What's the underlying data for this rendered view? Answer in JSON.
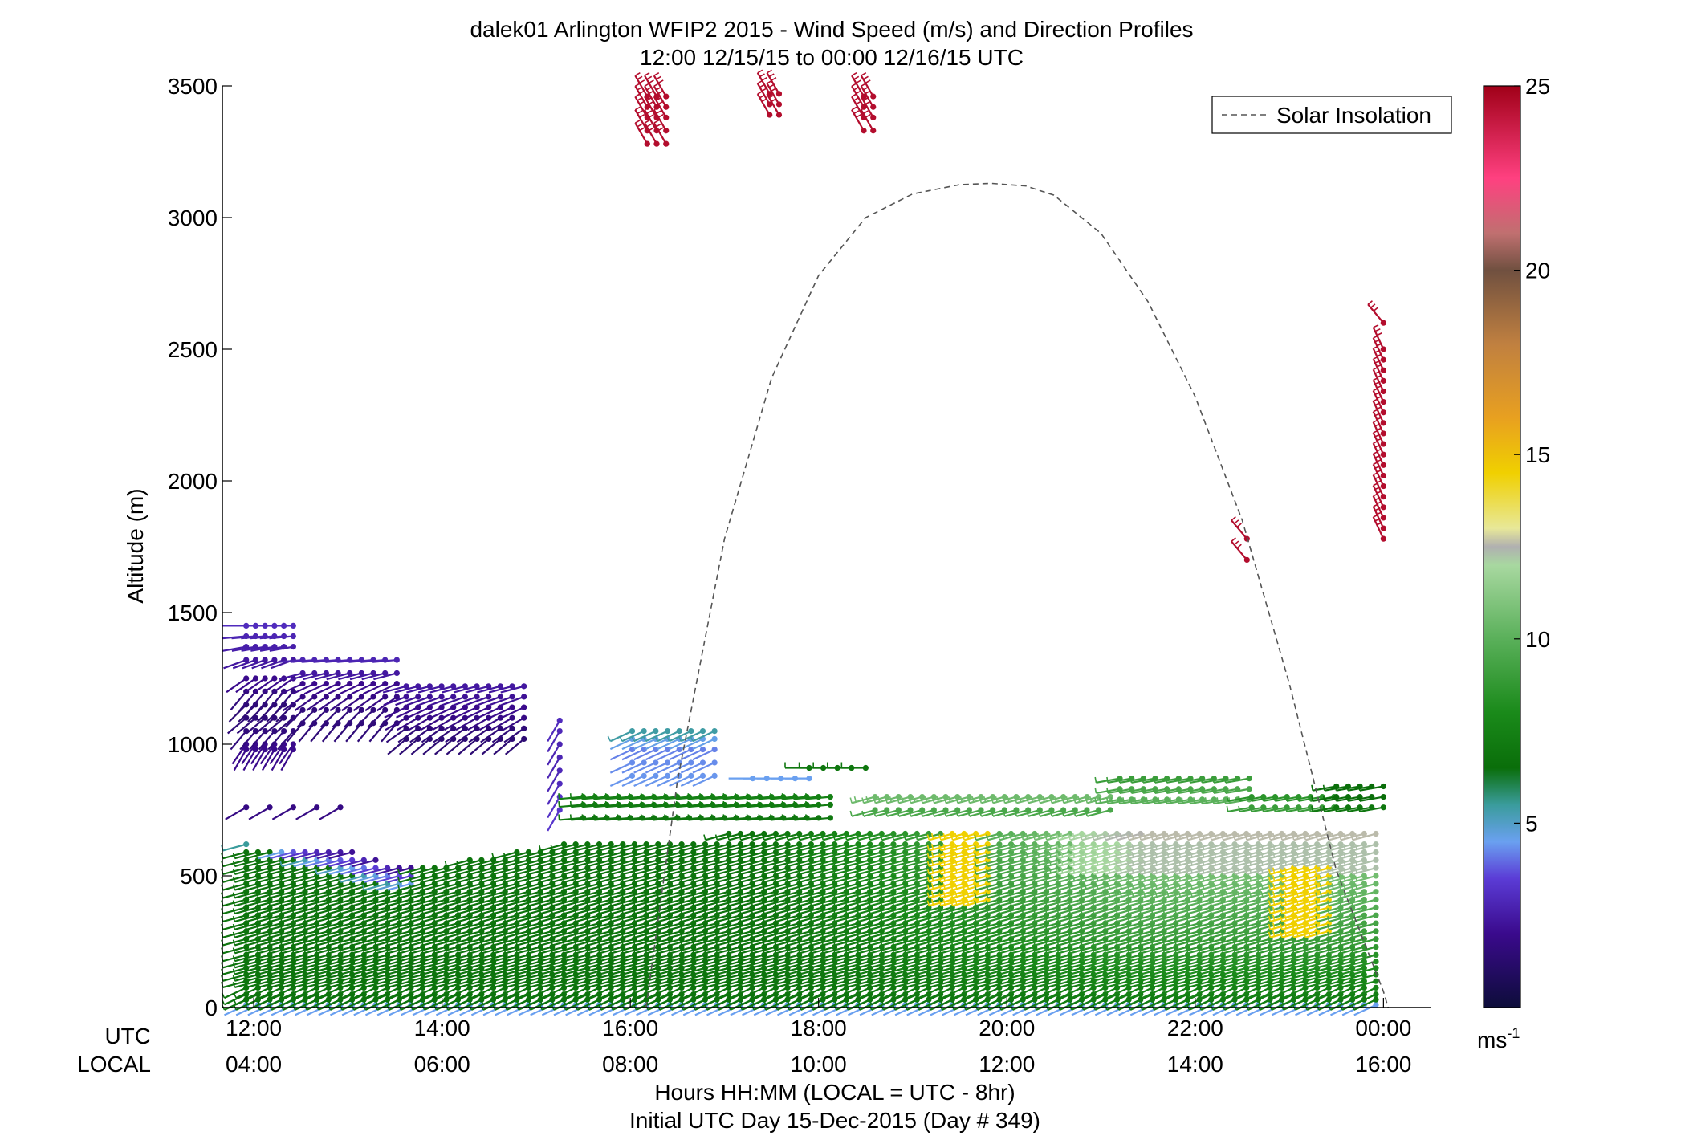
{
  "chart_data": {
    "type": "scatter",
    "title": "dalek01 Arlington WFIP2 2015 - Wind Speed (m/s) and Direction Profiles",
    "subtitle": "12:00 12/15/15 to 00:00 12/16/15  UTC",
    "ylabel": "Altitude (m)",
    "xlabel": "Hours HH:MM  (LOCAL = UTC - 8hr)",
    "footer": "Initial UTC Day 15-Dec-2015 (Day # 349)",
    "x_row_labels": [
      "UTC",
      "LOCAL"
    ],
    "xlim_hours_utc": [
      11.6667,
      24.5
    ],
    "ylim": [
      0,
      3500
    ],
    "grid": false,
    "legend_position": "top-right",
    "x_ticks": {
      "values": [
        12,
        14,
        16,
        18,
        20,
        22,
        24
      ],
      "utc_labels": [
        "12:00",
        "14:00",
        "16:00",
        "18:00",
        "20:00",
        "22:00",
        "00:00"
      ],
      "local_labels": [
        "04:00",
        "06:00",
        "08:00",
        "10:00",
        "12:00",
        "14:00",
        "16:00"
      ]
    },
    "y_ticks": {
      "values": [
        0,
        500,
        1000,
        1500,
        2000,
        2500,
        3000,
        3500
      ],
      "labels": [
        "0",
        "500",
        "1000",
        "1500",
        "2000",
        "2500",
        "3000",
        "3500"
      ]
    },
    "colorbar": {
      "min": 0,
      "max": 25,
      "tick_values": [
        5,
        10,
        15,
        20,
        25
      ],
      "tick_labels": [
        "5",
        "10",
        "15",
        "20",
        "25"
      ],
      "unit_label": "ms",
      "unit_exponent": "-1",
      "stops": [
        [
          0,
          "#0d0d3a"
        ],
        [
          2,
          "#3a0a8c"
        ],
        [
          3.5,
          "#5b3cd6"
        ],
        [
          4.5,
          "#6aa0f0"
        ],
        [
          5.5,
          "#3a9c9c"
        ],
        [
          6.5,
          "#0a6e0a"
        ],
        [
          8,
          "#1a8a1a"
        ],
        [
          10,
          "#5ab05a"
        ],
        [
          12,
          "#a8d8a0"
        ],
        [
          12.5,
          "#b0b0b0"
        ],
        [
          13,
          "#e8e898"
        ],
        [
          14.5,
          "#f0d000"
        ],
        [
          16,
          "#e8a020"
        ],
        [
          18,
          "#c08040"
        ],
        [
          20,
          "#705040"
        ],
        [
          21,
          "#c07070"
        ],
        [
          22.5,
          "#ff4080"
        ],
        [
          25,
          "#a00018"
        ]
      ]
    },
    "series": [
      {
        "name": "Solar Insolation",
        "style": "dashed",
        "color": "#555555",
        "x": [
          16.167,
          16.5,
          17,
          17.5,
          18,
          18.5,
          19,
          19.5,
          19.833,
          20.2,
          20.5,
          21,
          21.5,
          22,
          22.5,
          23,
          23.5,
          24,
          24.05
        ],
        "y": [
          0,
          860,
          1780,
          2390,
          2780,
          3000,
          3090,
          3125,
          3130,
          3120,
          3085,
          2940,
          2680,
          2320,
          1850,
          1230,
          520,
          60,
          0
        ]
      }
    ],
    "wind_barbs": {
      "units": "m/s",
      "direction_convention": "degrees from which wind blows",
      "groups": [
        {
          "t0": 11.92,
          "t1": 12.42,
          "dt": 0.1,
          "z": [
            980,
            1000,
            1050,
            1100,
            1150,
            1200,
            1250,
            1320,
            1370,
            1410,
            1450
          ],
          "spd": [
            2.0,
            2.0,
            1.6,
            1.5,
            1.4,
            1.6,
            2.0,
            2.4,
            2.6,
            2.8,
            3.0
          ],
          "dir": [
            210,
            215,
            220,
            230,
            225,
            220,
            235,
            250,
            260,
            265,
            270
          ]
        },
        {
          "t0": 12.52,
          "t1": 13.52,
          "dt": 0.125,
          "z": [
            1080,
            1130,
            1180,
            1230,
            1270,
            1320
          ],
          "spd": [
            1.5,
            1.6,
            1.8,
            2.0,
            2.4,
            2.8
          ],
          "dir": [
            220,
            225,
            235,
            245,
            255,
            265
          ]
        },
        {
          "t0": 13.62,
          "t1": 14.87,
          "dt": 0.125,
          "z": [
            1020,
            1060,
            1100,
            1140,
            1180,
            1220
          ],
          "spd": [
            1.4,
            1.5,
            1.8,
            2.0,
            2.2,
            2.4
          ],
          "dir": [
            230,
            235,
            240,
            245,
            250,
            255
          ]
        },
        {
          "t0": 15.25,
          "t1": 15.25,
          "dt": 0.125,
          "z": [
            750,
            800,
            850,
            900,
            950,
            1000,
            1050,
            1090
          ],
          "spd": [
            3.3,
            3.2,
            3.0,
            2.9,
            2.8,
            2.8,
            2.9,
            3.0
          ],
          "dir": [
            210,
            210,
            210,
            210,
            210,
            210,
            210,
            210
          ]
        },
        {
          "t0": 16.02,
          "t1": 16.9,
          "dt": 0.125,
          "z": [
            880,
            930,
            980,
            1020,
            1050
          ],
          "spd": [
            4.4,
            4.3,
            4.2,
            4.6,
            5.4
          ],
          "dir": [
            245,
            245,
            245,
            245,
            245
          ]
        },
        {
          "t0": 11.92,
          "t1": 12.92,
          "dt": 0.25,
          "z": [
            760
          ],
          "spd": [
            1.8
          ],
          "dir": [
            240
          ]
        },
        {
          "t0": 17.3,
          "t1": 17.9,
          "dt": 0.15,
          "z": [
            870
          ],
          "spd": [
            4.5
          ],
          "dir": [
            270
          ]
        },
        {
          "t0": 17.9,
          "t1": 18.6,
          "dt": 0.15,
          "z": [
            910
          ],
          "spd": [
            7.0
          ],
          "dir": [
            270
          ]
        },
        {
          "t0": 15.5,
          "t1": 18.2,
          "dt": 0.125,
          "z": [
            720,
            770,
            800
          ],
          "spd": [
            7.0,
            7.2,
            7.5
          ],
          "dir": [
            265,
            265,
            265
          ]
        },
        {
          "t0": 18.6,
          "t1": 21.2,
          "dt": 0.125,
          "z": [
            750,
            800
          ],
          "spd": [
            9.5,
            10.5
          ],
          "dir": [
            255,
            255
          ]
        },
        {
          "t0": 21.2,
          "t1": 22.6,
          "dt": 0.125,
          "z": [
            790,
            830,
            870
          ],
          "spd": [
            10.0,
            9.5,
            9.0
          ],
          "dir": [
            260,
            260,
            260
          ]
        },
        {
          "t0": 22.6,
          "t1": 23.5,
          "dt": 0.125,
          "z": [
            760,
            800
          ],
          "spd": [
            9.0,
            8.5
          ],
          "dir": [
            260,
            260
          ]
        },
        {
          "t0": 23.5,
          "t1": 24.0,
          "dt": 0.125,
          "z": [
            760,
            800,
            840
          ],
          "spd": [
            7.0,
            6.5,
            6.5
          ],
          "dir": [
            260,
            260,
            260
          ]
        },
        {
          "t0": 16.18,
          "t1": 16.38,
          "dt": 0.1,
          "z": [
            3280,
            3330,
            3380,
            3420,
            3460
          ],
          "spd": [
            24.5,
            24.5,
            24.5,
            24.5,
            24.5
          ],
          "dir": [
            330,
            330,
            330,
            330,
            330
          ]
        },
        {
          "t0": 17.48,
          "t1": 17.58,
          "dt": 0.1,
          "z": [
            3390,
            3430,
            3470
          ],
          "spd": [
            24.5,
            24.5,
            24.5
          ],
          "dir": [
            330,
            330,
            330
          ]
        },
        {
          "t0": 18.48,
          "t1": 18.58,
          "dt": 0.1,
          "z": [
            3330,
            3380,
            3420,
            3460
          ],
          "spd": [
            24.5,
            24.5,
            24.5,
            24.5
          ],
          "dir": [
            330,
            330,
            330,
            330
          ]
        },
        {
          "t0": 22.55,
          "t1": 22.55,
          "dt": 0.1,
          "z": [
            1700,
            1780
          ],
          "spd": [
            24.5,
            24.5
          ],
          "dir": [
            320,
            320
          ]
        },
        {
          "t0": 24.0,
          "t1": 24.0,
          "dt": 0.1,
          "z": [
            1780,
            1820,
            1860,
            1900,
            1940,
            1980,
            2020,
            2060,
            2100,
            2140,
            2180,
            2220,
            2260,
            2300,
            2340,
            2380,
            2420,
            2460,
            2500,
            2600
          ],
          "spd": [
            24.5,
            24.5,
            24.5,
            24.5,
            24.5,
            24.5,
            24.5,
            24.5,
            24.5,
            24.5,
            24.5,
            24.5,
            24.5,
            24.5,
            24.5,
            24.5,
            24.5,
            24.5,
            24.5,
            24.5
          ],
          "dir": [
            335,
            335,
            335,
            335,
            335,
            335,
            335,
            335,
            335,
            335,
            335,
            335,
            335,
            335,
            335,
            335,
            335,
            335,
            335,
            320
          ]
        }
      ],
      "lower_field": {
        "t_range": [
          11.92,
          24.0
        ],
        "dt": 0.125,
        "z_levels": [
          10,
          30,
          50,
          75,
          100,
          125,
          150,
          175,
          200,
          230,
          260,
          290,
          320,
          350,
          380,
          410,
          440,
          470,
          500,
          530,
          560,
          590,
          620,
          660
        ],
        "top_altitude_profile": {
          "t": [
            11.92,
            13.0,
            13.6,
            14.5,
            15.5,
            17.0,
            24.0
          ],
          "z": [
            620,
            600,
            530,
            570,
            640,
            660,
            660
          ]
        },
        "direction_deg": 255,
        "speed_model": {
          "band_descending_t": [
            11.92,
            13.7
          ],
          "band_descending_z": [
            620,
            440
          ],
          "band_speed_range": [
            2.0,
            5.5
          ],
          "night_low_level_speed": 6.8,
          "day_low_level_speed_range": [
            7.0,
            11.8
          ],
          "day_upper_speed": 12.3,
          "yellow_patches": [
            {
              "t": [
                19.4,
                19.8
              ],
              "z": [
                400,
                660
              ],
              "speed": 14.5
            },
            {
              "t": [
                23.0,
                23.5
              ],
              "z": [
                280,
                540
              ],
              "speed": 14.5
            }
          ]
        }
      }
    }
  }
}
